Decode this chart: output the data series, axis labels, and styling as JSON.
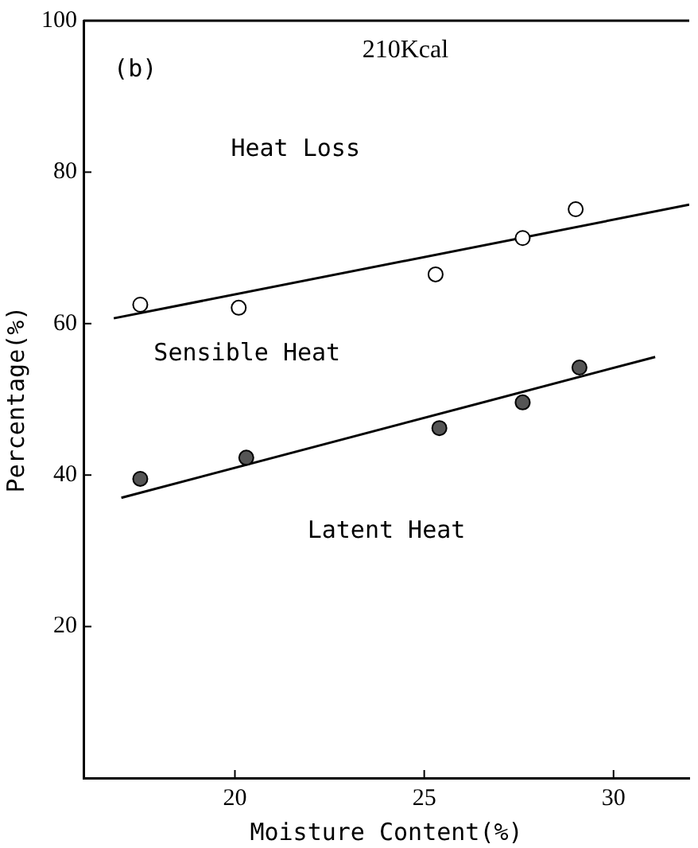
{
  "chart_data": {
    "type": "scatter",
    "title": "210Kcal",
    "xlabel": "Moisture Content(%)",
    "ylabel": "Percentage(%)",
    "xlim": [
      16,
      32
    ],
    "xticks": [
      20,
      25,
      30
    ],
    "ylim": [
      0,
      100
    ],
    "yticks": [
      20,
      40,
      60,
      80,
      100
    ],
    "grid": false,
    "legend": false,
    "marker": "circle",
    "annotations": [
      "(b)",
      "Heat Loss",
      "Sensible Heat",
      "Latent Heat"
    ],
    "series": [
      {
        "type": "scatter",
        "color": "#ffffff",
        "x": [
          17.5,
          20.1,
          25.3,
          27.6,
          29.0
        ],
        "values": [
          62.5,
          62.1,
          66.5,
          71.3,
          75.1
        ]
      },
      {
        "type": "scatter",
        "color": "#555555",
        "x": [
          17.5,
          20.3,
          25.4,
          27.6,
          29.1
        ],
        "values": [
          39.5,
          42.3,
          46.2,
          49.6,
          54.2
        ]
      },
      {
        "type": "line",
        "color": "#000000",
        "marker": "none",
        "x": [
          16.8,
          32
        ],
        "values": [
          60.7,
          75.7
        ]
      },
      {
        "type": "line",
        "color": "#000000",
        "marker": "none",
        "x": [
          17.0,
          31.1
        ],
        "values": [
          37.0,
          55.6
        ]
      }
    ]
  }
}
